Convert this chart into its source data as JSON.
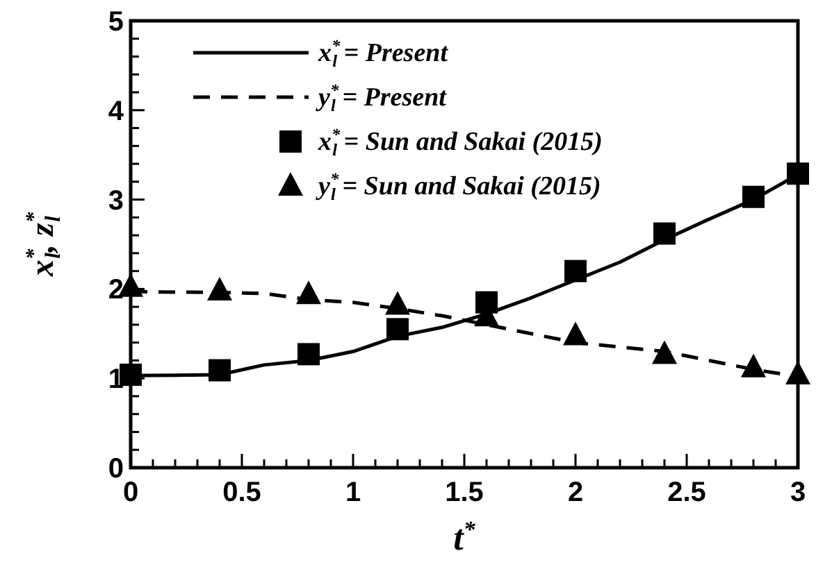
{
  "chart_data": {
    "type": "line",
    "xlabel": "t$^{*}$",
    "ylabel": "x$^{*}$$_{l}$, z$^{*}$$_{l}$",
    "xlim": [
      0,
      3
    ],
    "ylim": [
      0,
      5
    ],
    "xticks": [
      0,
      {
        "value": 0.1,
        "label": null
      },
      {
        "value": 0.2,
        "label": null
      },
      {
        "value": 0.3,
        "label": null
      },
      {
        "value": 0.4,
        "label": null
      },
      0.5,
      {
        "value": 0.6,
        "label": null
      },
      {
        "value": 0.7,
        "label": null
      },
      {
        "value": 0.8,
        "label": null
      },
      {
        "value": 0.9,
        "label": null
      },
      1,
      {
        "value": 1.1,
        "label": null
      },
      {
        "value": 1.2,
        "label": null
      },
      {
        "value": 1.3,
        "label": null
      },
      {
        "value": 1.4,
        "label": null
      },
      1.5,
      {
        "value": 1.6,
        "label": null
      },
      {
        "value": 1.7,
        "label": null
      },
      {
        "value": 1.8,
        "label": null
      },
      {
        "value": 1.9,
        "label": null
      },
      2,
      {
        "value": 2.1,
        "label": null
      },
      {
        "value": 2.2,
        "label": null
      },
      {
        "value": 2.3,
        "label": null
      },
      {
        "value": 2.4,
        "label": null
      },
      2.5,
      {
        "value": 2.6,
        "label": null
      },
      {
        "value": 2.7,
        "label": null
      },
      {
        "value": 2.8,
        "label": null
      },
      {
        "value": 2.9,
        "label": null
      },
      3
    ],
    "yticks": [
      0,
      {
        "value": 0.2,
        "label": null
      },
      {
        "value": 0.4,
        "label": null
      },
      {
        "value": 0.6,
        "label": null
      },
      {
        "value": 0.8,
        "label": null
      },
      1,
      {
        "value": 1.2,
        "label": null
      },
      {
        "value": 1.4,
        "label": null
      },
      {
        "value": 1.6,
        "label": null
      },
      {
        "value": 1.8,
        "label": null
      },
      2,
      {
        "value": 2.2,
        "label": null
      },
      {
        "value": 2.4,
        "label": null
      },
      {
        "value": 2.6,
        "label": null
      },
      {
        "value": 2.8,
        "label": null
      },
      3,
      {
        "value": 3.2,
        "label": null
      },
      {
        "value": 3.4,
        "label": null
      },
      {
        "value": 3.6,
        "label": null
      },
      {
        "value": 3.8,
        "label": null
      },
      4,
      {
        "value": 4.2,
        "label": null
      },
      {
        "value": 4.4,
        "label": null
      },
      {
        "value": 4.6,
        "label": null
      },
      {
        "value": 4.8,
        "label": null
      },
      5
    ],
    "grid": false,
    "legend": "top left",
    "series": [
      {
        "name": "x$^{*}$$_{l}$ = Present",
        "line_style": "solid",
        "marker": "none",
        "color": "#000000",
        "x": [
          0,
          0.4,
          0.6,
          0.8,
          1.0,
          1.2,
          1.4,
          1.6,
          1.8,
          2.0,
          2.2,
          2.4,
          2.6,
          2.8,
          3.0
        ],
        "values": [
          1.03,
          1.04,
          1.15,
          1.2,
          1.3,
          1.47,
          1.57,
          1.72,
          1.9,
          2.1,
          2.3,
          2.55,
          2.78,
          3.0,
          3.28
        ]
      },
      {
        "name": "y$^{*}$$_{l}$ = Present",
        "line_style": "dashed",
        "marker": "none",
        "color": "#000000",
        "x": [
          0,
          0.4,
          0.6,
          0.8,
          1.0,
          1.2,
          1.4,
          1.6,
          1.8,
          2.0,
          2.2,
          2.4,
          2.6,
          2.8,
          3.0
        ],
        "values": [
          1.97,
          1.96,
          1.95,
          1.88,
          1.85,
          1.78,
          1.7,
          1.6,
          1.5,
          1.4,
          1.35,
          1.3,
          1.2,
          1.1,
          1.02
        ]
      },
      {
        "name": "x$^{*}$$_{l}$ = Sun and Sakai (2015)",
        "type": "scatter",
        "marker": "square",
        "color": "#000000",
        "x": [
          0,
          0.4,
          0.8,
          1.2,
          1.6,
          2.0,
          2.4,
          2.8,
          3.0
        ],
        "values": [
          1.04,
          1.09,
          1.27,
          1.55,
          1.85,
          2.2,
          2.62,
          3.03,
          3.29
        ]
      },
      {
        "name": "y$^{*}$$_{l}$ = Sun and Sakai (2015)",
        "type": "scatter",
        "marker": "triangle",
        "color": "#000000",
        "x": [
          0,
          0.4,
          0.8,
          1.2,
          1.6,
          2.0,
          2.4,
          2.8,
          3.0
        ],
        "values": [
          2.02,
          1.98,
          1.94,
          1.82,
          1.69,
          1.48,
          1.27,
          1.12,
          1.04
        ]
      }
    ]
  }
}
